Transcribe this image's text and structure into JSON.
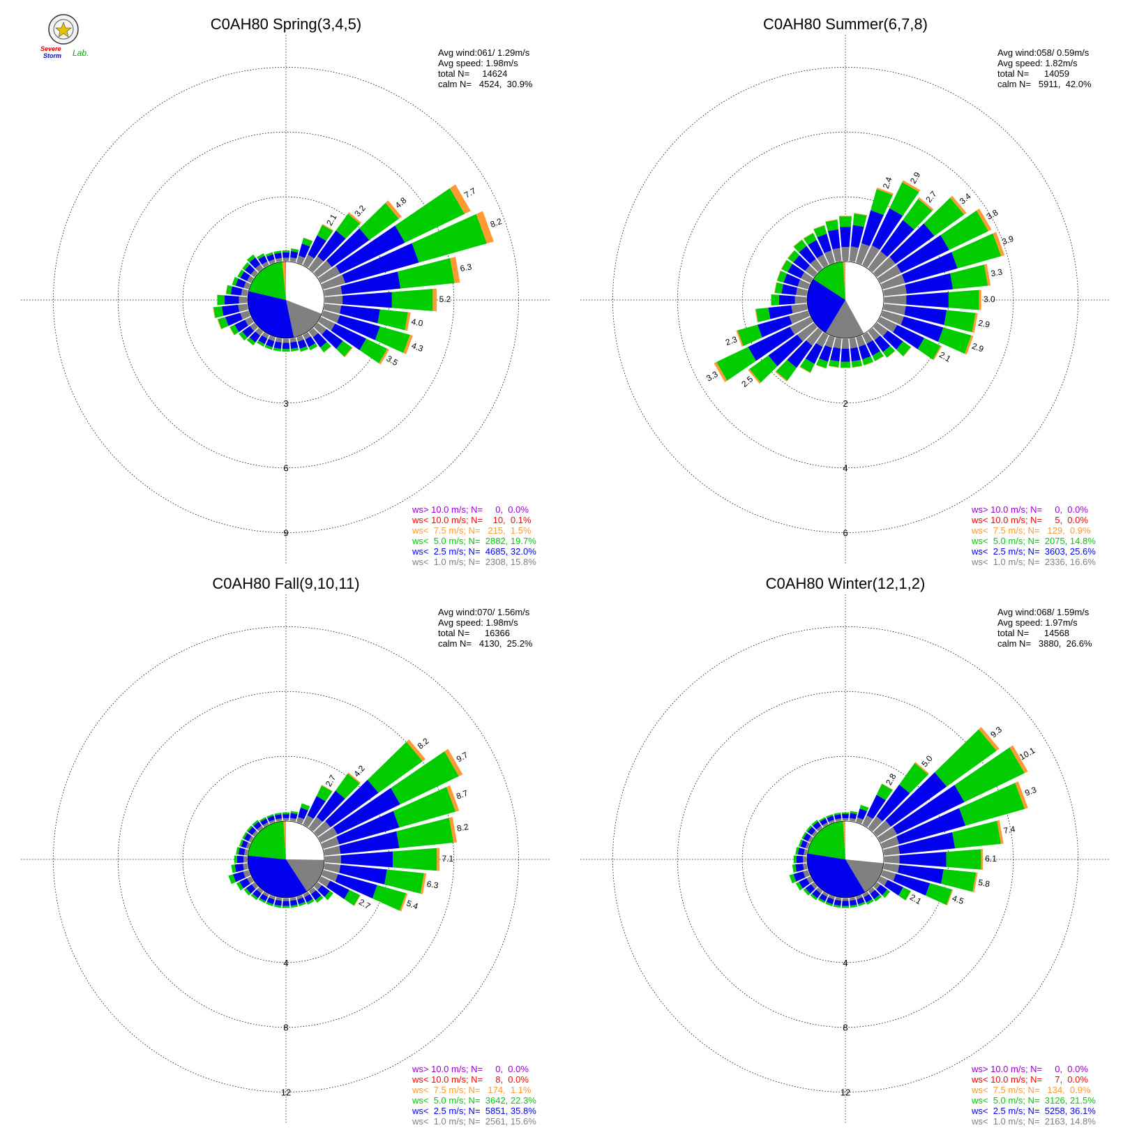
{
  "logo": {
    "line1": "Severe",
    "line2": "Storm",
    "line3": "Lab."
  },
  "colors": {
    "calm": "#ffffff",
    "lt1": "#808080",
    "lt2_5": "#0000ee",
    "lt5": "#00cc00",
    "lt7_5": "#ff9933",
    "lt10": "#ff0000",
    "gt10": "#9900cc"
  },
  "chart_data": [
    {
      "type": "wind-rose",
      "title": "C0AH80 Spring(3,4,5)",
      "stats": [
        "Avg wind:061/ 1.29m/s",
        "Avg speed: 1.98m/s",
        "total N=     14624",
        "calm N=   4524,  30.9%"
      ],
      "ring_labels": [
        "3",
        "6",
        "9"
      ],
      "ring_max": 10.5,
      "directions_deg": [
        0,
        10,
        20,
        30,
        40,
        50,
        60,
        70,
        80,
        90,
        100,
        110,
        120,
        130,
        140,
        150,
        160,
        170,
        180,
        190,
        200,
        210,
        220,
        230,
        240,
        250,
        260,
        270,
        280,
        290,
        300,
        310,
        320,
        330,
        340,
        350
      ],
      "totals": [
        0.5,
        0.6,
        1.2,
        2.1,
        3.2,
        4.8,
        7.7,
        8.2,
        6.3,
        5.2,
        4.0,
        4.3,
        3.5,
        2.0,
        1.2,
        0.8,
        0.7,
        0.6,
        0.6,
        0.6,
        0.6,
        0.6,
        0.8,
        0.9,
        1.1,
        1.5,
        1.6,
        1.4,
        1.0,
        0.8,
        0.7,
        0.7,
        0.8,
        0.6,
        0.5,
        0.5
      ],
      "pct_labels": [
        {
          "dir": 30,
          "text": "2.1"
        },
        {
          "dir": 40,
          "text": "3.2"
        },
        {
          "dir": 50,
          "text": "4.8"
        },
        {
          "dir": 60,
          "text": "7.7"
        },
        {
          "dir": 70,
          "text": "8.2"
        },
        {
          "dir": 80,
          "text": "6.3"
        },
        {
          "dir": 90,
          "text": "5.2"
        },
        {
          "dir": 100,
          "text": "4.0"
        },
        {
          "dir": 110,
          "text": "4.3"
        },
        {
          "dir": 120,
          "text": "3.5"
        }
      ],
      "pie": [
        30.9,
        15.8,
        32.0,
        19.7,
        1.5,
        0.1,
        0.0
      ],
      "legend": [
        {
          "text": "ws> 10.0 m/s; N=     0,  0.0%",
          "color": "#9900cc"
        },
        {
          "text": "ws< 10.0 m/s; N=    10,  0.1%",
          "color": "#ff0000"
        },
        {
          "text": "ws<  7.5 m/s; N=   215,  1.5%",
          "color": "#ff9933"
        },
        {
          "text": "ws<  5.0 m/s; N=  2882, 19.7%",
          "color": "#00cc00"
        },
        {
          "text": "ws<  2.5 m/s; N=  4685, 32.0%",
          "color": "#0000ee"
        },
        {
          "text": "ws<  1.0 m/s; N=  2308, 15.8%",
          "color": "#808080"
        }
      ]
    },
    {
      "type": "wind-rose",
      "title": "C0AH80 Summer(6,7,8)",
      "stats": [
        "Avg wind:058/ 0.59m/s",
        "Avg speed: 1.82m/s",
        "total N=      14059",
        "calm N=   5911,  42.0%"
      ],
      "ring_labels": [
        "2",
        "4",
        "6"
      ],
      "ring_max": 7.0,
      "directions_deg": [
        0,
        10,
        20,
        30,
        40,
        50,
        60,
        70,
        80,
        90,
        100,
        110,
        120,
        130,
        140,
        150,
        160,
        170,
        180,
        190,
        200,
        210,
        220,
        230,
        240,
        250,
        260,
        270,
        280,
        290,
        300,
        310,
        320,
        330,
        340,
        350
      ],
      "totals": [
        1.4,
        1.5,
        2.4,
        2.9,
        2.7,
        3.4,
        3.8,
        3.9,
        3.3,
        3.0,
        2.9,
        2.9,
        2.1,
        1.3,
        1.0,
        0.9,
        0.9,
        0.9,
        0.9,
        0.9,
        1.0,
        1.3,
        1.9,
        2.5,
        3.3,
        2.3,
        1.6,
        1.1,
        1.0,
        1.0,
        1.0,
        1.0,
        1.1,
        1.1,
        1.2,
        1.3
      ],
      "pct_labels": [
        {
          "dir": 20,
          "text": "2.4"
        },
        {
          "dir": 30,
          "text": "2.9"
        },
        {
          "dir": 40,
          "text": "2.7"
        },
        {
          "dir": 50,
          "text": "3.4"
        },
        {
          "dir": 60,
          "text": "3.8"
        },
        {
          "dir": 70,
          "text": "3.9"
        },
        {
          "dir": 80,
          "text": "3.3"
        },
        {
          "dir": 90,
          "text": "3.0"
        },
        {
          "dir": 100,
          "text": "2.9"
        },
        {
          "dir": 110,
          "text": "2.9"
        },
        {
          "dir": 120,
          "text": "2.1"
        },
        {
          "dir": 230,
          "text": "2.5"
        },
        {
          "dir": 240,
          "text": "3.3"
        },
        {
          "dir": 250,
          "text": "2.3"
        }
      ],
      "pie": [
        42.0,
        16.6,
        25.6,
        14.8,
        0.9,
        0.0,
        0.0
      ],
      "legend": [
        {
          "text": "ws> 10.0 m/s; N=     0,  0.0%",
          "color": "#9900cc"
        },
        {
          "text": "ws< 10.0 m/s; N=     5,  0.0%",
          "color": "#ff0000"
        },
        {
          "text": "ws<  7.5 m/s; N=   129,  0.9%",
          "color": "#ff9933"
        },
        {
          "text": "ws<  5.0 m/s; N=  2075, 14.8%",
          "color": "#00cc00"
        },
        {
          "text": "ws<  2.5 m/s; N=  3603, 25.6%",
          "color": "#0000ee"
        },
        {
          "text": "ws<  1.0 m/s; N=  2336, 16.6%",
          "color": "#808080"
        }
      ]
    },
    {
      "type": "wind-rose",
      "title": "C0AH80 Fall(9,10,11)",
      "stats": [
        "Avg wind:070/ 1.56m/s",
        "Avg speed: 1.98m/s",
        "total N=      16366",
        "calm N=   4130,  25.2%"
      ],
      "ring_labels": [
        "4",
        "8",
        "12"
      ],
      "ring_max": 14.0,
      "directions_deg": [
        0,
        10,
        20,
        30,
        40,
        50,
        60,
        70,
        80,
        90,
        100,
        110,
        120,
        130,
        140,
        150,
        160,
        170,
        180,
        190,
        200,
        210,
        220,
        230,
        240,
        250,
        260,
        270,
        280,
        290,
        300,
        310,
        320,
        330,
        340,
        350
      ],
      "totals": [
        0.5,
        0.6,
        1.2,
        2.7,
        4.2,
        8.2,
        9.7,
        8.7,
        8.2,
        7.1,
        6.3,
        5.4,
        2.7,
        1.2,
        0.9,
        0.7,
        0.6,
        0.6,
        0.6,
        0.6,
        0.6,
        0.6,
        0.7,
        0.8,
        1.0,
        1.3,
        1.0,
        0.8,
        0.7,
        0.6,
        0.6,
        0.6,
        0.6,
        0.5,
        0.5,
        0.5
      ],
      "pct_labels": [
        {
          "dir": 30,
          "text": "2.7"
        },
        {
          "dir": 40,
          "text": "4.2"
        },
        {
          "dir": 50,
          "text": "8.2"
        },
        {
          "dir": 60,
          "text": "9.7"
        },
        {
          "dir": 70,
          "text": "8.7"
        },
        {
          "dir": 80,
          "text": "8.2"
        },
        {
          "dir": 90,
          "text": "7.1"
        },
        {
          "dir": 100,
          "text": "6.3"
        },
        {
          "dir": 110,
          "text": "5.4"
        },
        {
          "dir": 120,
          "text": "2.7"
        }
      ],
      "pie": [
        25.2,
        15.6,
        35.8,
        22.3,
        1.1,
        0.0,
        0.0
      ],
      "legend": [
        {
          "text": "ws> 10.0 m/s; N=     0,  0.0%",
          "color": "#9900cc"
        },
        {
          "text": "ws< 10.0 m/s; N=     8,  0.0%",
          "color": "#ff0000"
        },
        {
          "text": "ws<  7.5 m/s; N=   174,  1.1%",
          "color": "#ff9933"
        },
        {
          "text": "ws<  5.0 m/s; N=  3642, 22.3%",
          "color": "#00cc00"
        },
        {
          "text": "ws<  2.5 m/s; N=  5851, 35.8%",
          "color": "#0000ee"
        },
        {
          "text": "ws<  1.0 m/s; N=  2561, 15.6%",
          "color": "#808080"
        }
      ]
    },
    {
      "type": "wind-rose",
      "title": "C0AH80 Winter(12,1,2)",
      "stats": [
        "Avg wind:068/ 1.59m/s",
        "Avg speed: 1.97m/s",
        "total N=      14568",
        "calm N=   3880,  26.6%"
      ],
      "ring_labels": [
        "4",
        "8",
        "12"
      ],
      "ring_max": 14.0,
      "directions_deg": [
        0,
        10,
        20,
        30,
        40,
        50,
        60,
        70,
        80,
        90,
        100,
        110,
        120,
        130,
        140,
        150,
        160,
        170,
        180,
        190,
        200,
        210,
        220,
        230,
        240,
        250,
        260,
        270,
        280,
        290,
        300,
        310,
        320,
        330,
        340,
        350
      ],
      "totals": [
        0.5,
        0.6,
        1.1,
        2.8,
        5.0,
        9.3,
        10.1,
        9.3,
        7.4,
        6.1,
        5.8,
        4.5,
        2.1,
        1.0,
        0.8,
        0.7,
        0.6,
        0.6,
        0.6,
        0.6,
        0.6,
        0.6,
        0.7,
        0.8,
        1.0,
        1.2,
        0.9,
        0.8,
        0.7,
        0.6,
        0.6,
        0.6,
        0.6,
        0.5,
        0.5,
        0.5
      ],
      "pct_labels": [
        {
          "dir": 30,
          "text": "2.8"
        },
        {
          "dir": 40,
          "text": "5.0"
        },
        {
          "dir": 50,
          "text": "9.3"
        },
        {
          "dir": 60,
          "text": "10.1"
        },
        {
          "dir": 70,
          "text": "9.3"
        },
        {
          "dir": 80,
          "text": "7.4"
        },
        {
          "dir": 90,
          "text": "6.1"
        },
        {
          "dir": 100,
          "text": "5.8"
        },
        {
          "dir": 110,
          "text": "4.5"
        },
        {
          "dir": 120,
          "text": "2.1"
        }
      ],
      "pie": [
        26.6,
        14.8,
        36.1,
        21.5,
        0.9,
        0.0,
        0.0
      ],
      "legend": [
        {
          "text": "ws> 10.0 m/s; N=     0,  0.0%",
          "color": "#9900cc"
        },
        {
          "text": "ws< 10.0 m/s; N=     7,  0.0%",
          "color": "#ff0000"
        },
        {
          "text": "ws<  7.5 m/s; N=   134,  0.9%",
          "color": "#ff9933"
        },
        {
          "text": "ws<  5.0 m/s; N=  3126, 21.5%",
          "color": "#00cc00"
        },
        {
          "text": "ws<  2.5 m/s; N=  5258, 36.1%",
          "color": "#0000ee"
        },
        {
          "text": "ws<  1.0 m/s; N=  2163, 14.8%",
          "color": "#808080"
        }
      ]
    }
  ]
}
